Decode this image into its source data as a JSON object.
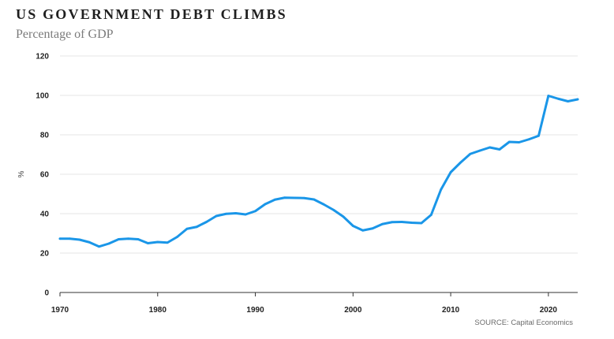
{
  "chart_data": {
    "type": "line",
    "title": "US GOVERNMENT DEBT CLIMBS",
    "subtitle": "Percentage of GDP",
    "ylabel": "%",
    "xlabel": "",
    "source": "SOURCE: Capital Economics",
    "xlim": [
      1970,
      2023
    ],
    "ylim": [
      0,
      120
    ],
    "x_ticks": [
      1970,
      1980,
      1990,
      2000,
      2010,
      2020
    ],
    "y_ticks": [
      0,
      20,
      40,
      60,
      80,
      100,
      120
    ],
    "grid": true,
    "line_color": "#1a96e8",
    "series": [
      {
        "name": "",
        "x": [
          1970,
          1971,
          1972,
          1973,
          1974,
          1975,
          1976,
          1977,
          1978,
          1979,
          1980,
          1981,
          1982,
          1983,
          1984,
          1985,
          1986,
          1987,
          1988,
          1989,
          1990,
          1991,
          1992,
          1993,
          1994,
          1995,
          1996,
          1997,
          1998,
          1999,
          2000,
          2001,
          2002,
          2003,
          2004,
          2005,
          2006,
          2007,
          2008,
          2009,
          2010,
          2011,
          2012,
          2013,
          2014,
          2015,
          2016,
          2017,
          2018,
          2019,
          2020,
          2021,
          2022,
          2023
        ],
        "values": [
          27.3,
          27.3,
          26.8,
          25.5,
          23.3,
          24.8,
          27.0,
          27.3,
          27.0,
          25.0,
          25.6,
          25.3,
          28.2,
          32.3,
          33.3,
          35.8,
          38.8,
          39.9,
          40.2,
          39.6,
          41.3,
          44.8,
          47.1,
          48.1,
          48.0,
          47.9,
          47.2,
          44.7,
          41.9,
          38.5,
          33.8,
          31.5,
          32.5,
          34.7,
          35.7,
          35.8,
          35.4,
          35.2,
          39.4,
          52.2,
          61.0,
          65.9,
          70.3,
          72.0,
          73.6,
          72.6,
          76.4,
          76.2,
          77.7,
          79.5,
          99.8,
          98.3,
          97.0,
          98.0
        ]
      }
    ]
  }
}
